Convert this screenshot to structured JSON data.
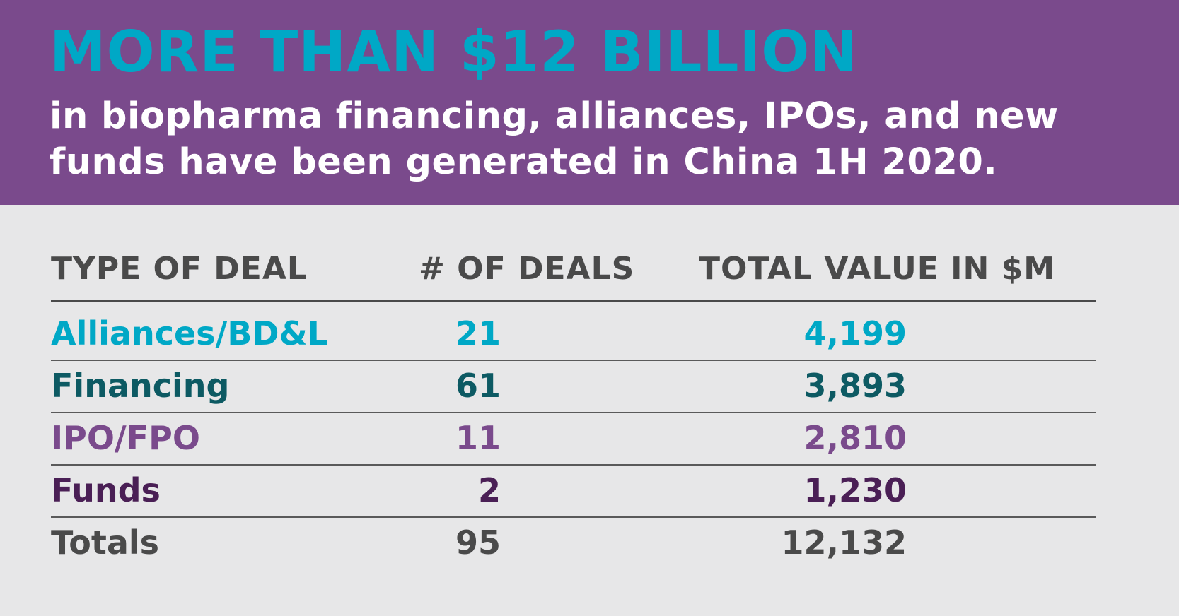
{
  "colors": {
    "banner": "#7a4a8c",
    "headline": "#00a8c6",
    "subhead": "#ffffff",
    "header_text": "#4a4a4a"
  },
  "banner": {
    "headline": "MORE THAN $12 BILLION",
    "subhead_line1": "in biopharma financing, alliances, IPOs, and new",
    "subhead_line2": "funds have been generated in China 1H 2020."
  },
  "table": {
    "headers": {
      "type": "TYPE OF DEAL",
      "count": "# OF DEALS",
      "value": "TOTAL VALUE IN $M"
    },
    "rows": [
      {
        "type": "Alliances/BD&L",
        "count": "21",
        "value": "4,199",
        "color": "#00a8c6"
      },
      {
        "type": "Financing",
        "count": "61",
        "value": "3,893",
        "color": "#0d5a63"
      },
      {
        "type": "IPO/FPO",
        "count": "11",
        "value": "2,810",
        "color": "#7a4a8c"
      },
      {
        "type": "Funds",
        "count": "2",
        "value": "1,230",
        "color": "#4a1f55"
      },
      {
        "type": "Totals",
        "count": "95",
        "value": "12,132",
        "color": "#4a4a4a"
      }
    ]
  }
}
